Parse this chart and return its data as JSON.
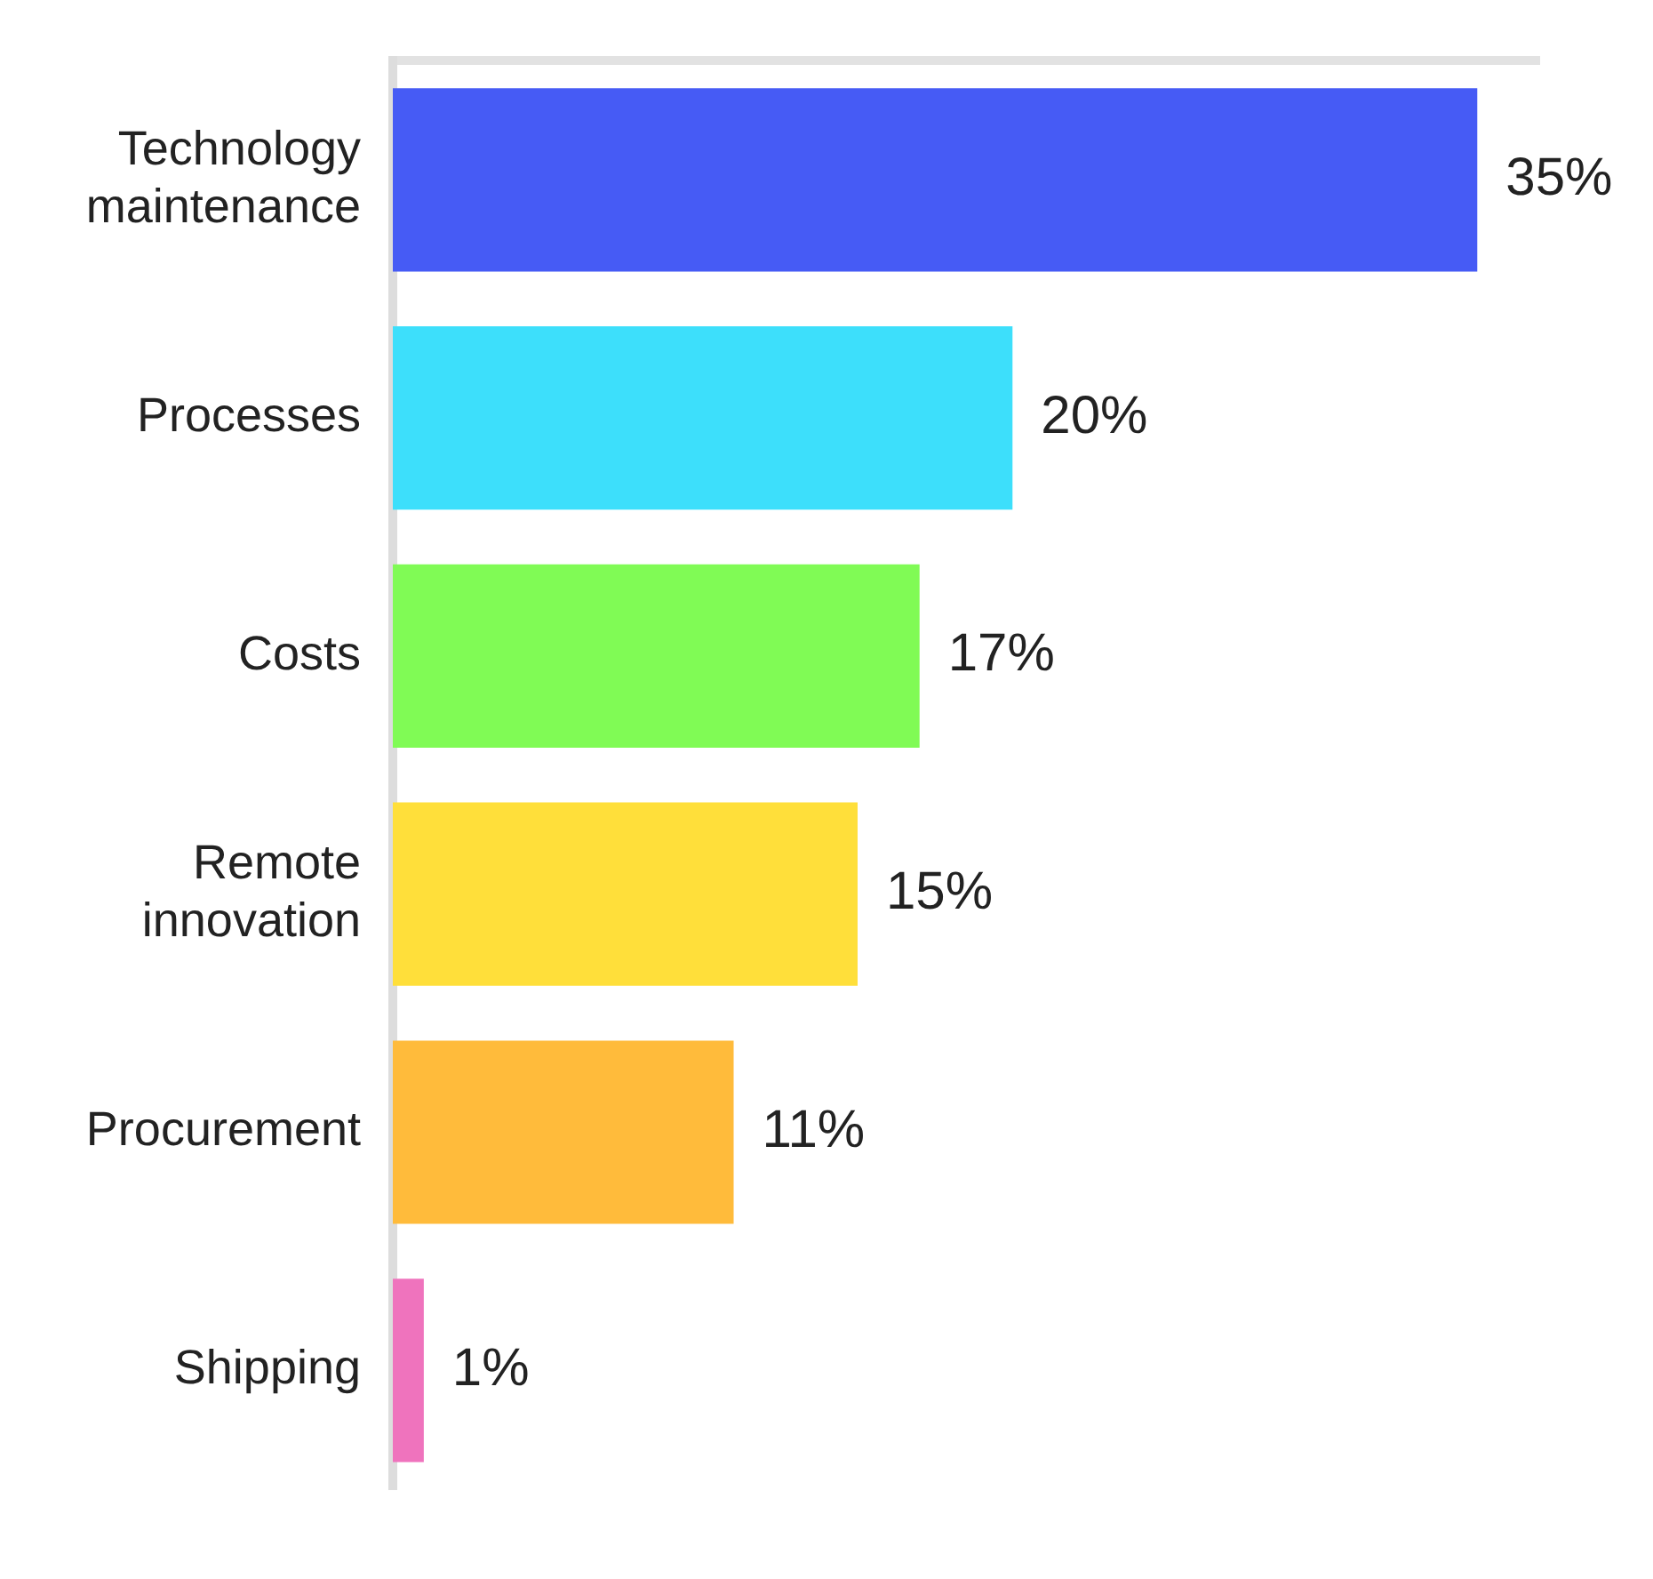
{
  "chart_data": {
    "type": "bar",
    "orientation": "horizontal",
    "categories": [
      "Technology maintenance",
      "Processes",
      "Costs",
      "Remote innovation",
      "Procurement",
      "Shipping"
    ],
    "values": [
      35,
      20,
      17,
      15,
      11,
      1
    ],
    "colors": [
      "#465bf5",
      "#3ddffb",
      "#80fb55",
      "#ffdf3a",
      "#ffbb3b",
      "#ef73bd"
    ],
    "value_labels": [
      "35%",
      "20%",
      "17%",
      "15%",
      "11%",
      "1%"
    ],
    "xlim": [
      0,
      37
    ],
    "tick_labels": "y",
    "grid": false,
    "legend": false
  }
}
